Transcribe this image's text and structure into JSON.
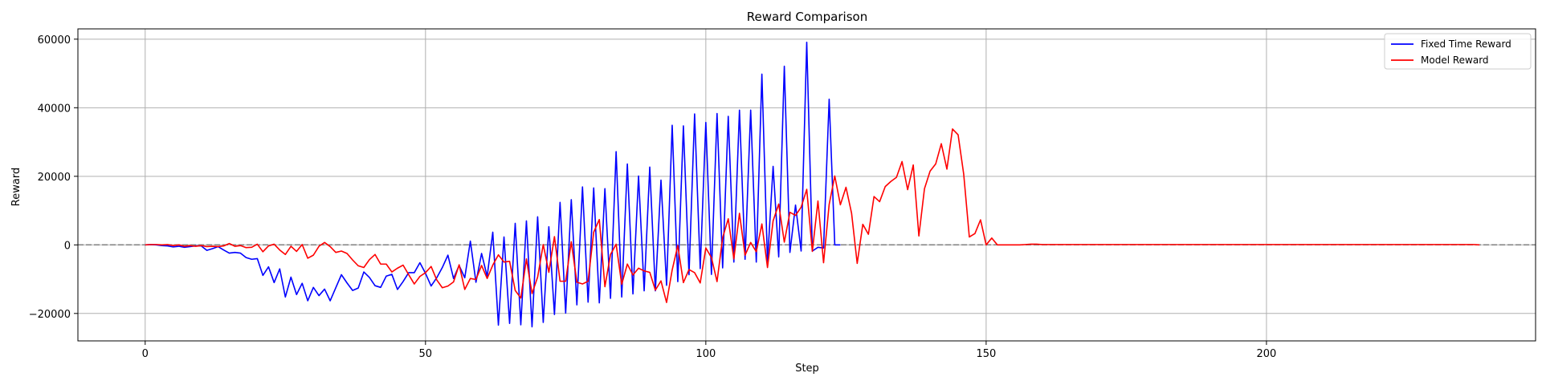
{
  "chart_data": {
    "type": "line",
    "title": "Reward Comparison",
    "xlabel": "Step",
    "ylabel": "Reward",
    "xlim": [
      -12,
      248
    ],
    "ylim": [
      -28000,
      63000
    ],
    "xticks": [
      0,
      50,
      100,
      150,
      200
    ],
    "yticks": [
      -20000,
      0,
      20000,
      40000,
      60000
    ],
    "xtick_labels": [
      "0",
      "50",
      "100",
      "150",
      "200"
    ],
    "ytick_labels": [
      "−20000",
      "0",
      "20000",
      "40000",
      "60000"
    ],
    "grid": true,
    "legend_position": "top-right",
    "reference_line": {
      "y": 0,
      "style": "dashed",
      "color": "#808080"
    },
    "series": [
      {
        "name": "Fixed Time Reward",
        "color": "#0000ff",
        "x_start": 0,
        "values": [
          0,
          100,
          0,
          -200,
          -300,
          -600,
          -400,
          -700,
          -500,
          -300,
          -300,
          -1600,
          -1100,
          -500,
          -1500,
          -2400,
          -2200,
          -2400,
          -3700,
          -4200,
          -4000,
          -8900,
          -6400,
          -11000,
          -7000,
          -15200,
          -9400,
          -14500,
          -11200,
          -16300,
          -12400,
          -14800,
          -12900,
          -16300,
          -12500,
          -8700,
          -11100,
          -13300,
          -12600,
          -7900,
          -9500,
          -11900,
          -12400,
          -9100,
          -8600,
          -13000,
          -10700,
          -8100,
          -8100,
          -5200,
          -8300,
          -12000,
          -9600,
          -6600,
          -3000,
          -9800,
          -6000,
          -9600,
          1100,
          -10900,
          -2500,
          -9200,
          3700,
          -23400,
          2300,
          -22900,
          6300,
          -23300,
          7000,
          -23900,
          8200,
          -22600,
          5300,
          -20300,
          12400,
          -19900,
          13200,
          -17500,
          16900,
          -16700,
          16600,
          -16900,
          16400,
          -15600,
          27200,
          -15200,
          23600,
          -14300,
          20100,
          -13400,
          22700,
          -13400,
          18900,
          -11800,
          34900,
          -10700,
          34700,
          -8700,
          38200,
          -6900,
          35700,
          -8600,
          38300,
          -6700,
          37500,
          -5000,
          39300,
          -4200,
          39300,
          -5000,
          49800,
          -5000,
          22900,
          -3500,
          52100,
          -2200,
          11600,
          -1800,
          59100,
          -1800,
          -700,
          -900,
          42500,
          0,
          0
        ]
      },
      {
        "name": "Model Reward",
        "color": "#ff0000",
        "x_start": 0,
        "values": [
          0,
          100,
          100,
          0,
          100,
          -200,
          0,
          -400,
          -200,
          -400,
          -200,
          -500,
          -400,
          -500,
          -300,
          400,
          -400,
          -200,
          -800,
          -700,
          200,
          -2000,
          -300,
          200,
          -1500,
          -2800,
          -400,
          -1900,
          100,
          -3900,
          -3000,
          -400,
          700,
          -500,
          -2200,
          -1800,
          -2500,
          -4400,
          -6100,
          -6600,
          -4300,
          -2800,
          -5600,
          -5600,
          -7900,
          -6800,
          -5900,
          -8700,
          -11400,
          -9200,
          -8100,
          -6300,
          -10200,
          -12500,
          -12000,
          -10800,
          -5800,
          -13000,
          -9800,
          -10100,
          -6000,
          -9800,
          -5900,
          -2900,
          -5000,
          -4800,
          -13300,
          -15500,
          -4100,
          -14200,
          -9400,
          100,
          -8000,
          2400,
          -10600,
          -10600,
          900,
          -10900,
          -11400,
          -10600,
          3700,
          7400,
          -12200,
          -2800,
          200,
          -11500,
          -5600,
          -8800,
          -6800,
          -7600,
          -8000,
          -13200,
          -10500,
          -16800,
          -7300,
          -200,
          -11000,
          -7200,
          -8100,
          -11100,
          -900,
          -3700,
          -10700,
          2100,
          7600,
          -4100,
          9200,
          -3000,
          700,
          -2000,
          6100,
          -6600,
          7000,
          11900,
          800,
          9500,
          8600,
          11000,
          16200,
          -1900,
          12800,
          -5200,
          11800,
          20100,
          11700,
          16800,
          9200,
          -5400,
          6000,
          3100,
          14100,
          12600,
          17000,
          18500,
          19700,
          24300,
          16100,
          23300,
          2600,
          16400,
          21500,
          23600,
          29500,
          22100,
          33800,
          32100,
          20600,
          2300,
          3300,
          7300,
          0,
          2000,
          0,
          0,
          0,
          0,
          0,
          100,
          200,
          200,
          100,
          100,
          100,
          100,
          100,
          100,
          100,
          100,
          100,
          100,
          100,
          100,
          100,
          100,
          100,
          100,
          100,
          100,
          100,
          100,
          100,
          100,
          100,
          100,
          100,
          100,
          100,
          100,
          100,
          100,
          100,
          100,
          100,
          100,
          100,
          100,
          100,
          100,
          100,
          100,
          100,
          100,
          100,
          100,
          100,
          100,
          100,
          100,
          100,
          100,
          100,
          100,
          100,
          100,
          100,
          100,
          100,
          100,
          100,
          100,
          100,
          100,
          100,
          100,
          100,
          100,
          100,
          100,
          100,
          100,
          100,
          100,
          100,
          100,
          100,
          100,
          100,
          100,
          0
        ]
      }
    ]
  }
}
